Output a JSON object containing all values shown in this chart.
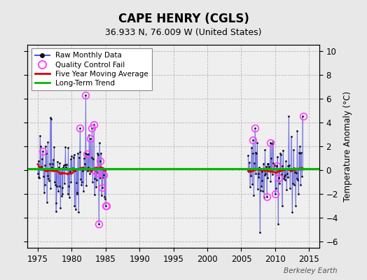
{
  "title": "CAPE HENRY (CGLS)",
  "subtitle": "36.933 N, 76.009 W (United States)",
  "ylabel": "Temperature Anomaly (°C)",
  "watermark": "Berkeley Earth",
  "xlim": [
    1973.5,
    2016.5
  ],
  "ylim": [
    -6.5,
    10.5
  ],
  "yticks": [
    -6,
    -4,
    -2,
    0,
    2,
    4,
    6,
    8,
    10
  ],
  "xticks": [
    1975,
    1980,
    1985,
    1990,
    1995,
    2000,
    2005,
    2010,
    2015
  ],
  "bg_color": "#e8e8e8",
  "plot_bg_color": "#efefef",
  "raw_line_color": "#5555dd",
  "raw_dot_color": "#111111",
  "qc_fail_color": "#ff44ff",
  "moving_avg_color": "#dd0000",
  "trend_color": "#00bb00",
  "trend_y": 0.12,
  "early_seed": 12345,
  "late_seed": 67890
}
